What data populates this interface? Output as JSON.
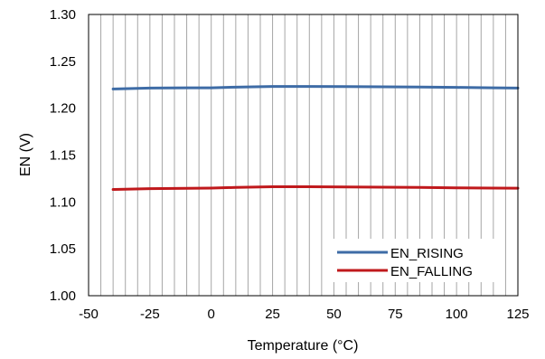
{
  "chart_data": {
    "type": "line",
    "title": "",
    "xlabel": "Temperature (°C)",
    "ylabel": "EN (V)",
    "xlim": [
      -50,
      125
    ],
    "ylim": [
      1.0,
      1.3
    ],
    "x_ticks": [
      -50,
      -25,
      0,
      25,
      50,
      75,
      100,
      125
    ],
    "x_tick_labels": [
      "-50",
      "-25",
      "0",
      "25",
      "50",
      "75",
      "100",
      "125"
    ],
    "y_ticks": [
      1.0,
      1.05,
      1.1,
      1.15,
      1.2,
      1.25,
      1.3
    ],
    "y_tick_labels": [
      "1.00",
      "1.05",
      "1.10",
      "1.15",
      "1.20",
      "1.25",
      "1.30"
    ],
    "x_grid_step": 5,
    "y_grid": false,
    "legend_position": "bottom-right",
    "x": [
      -40,
      -25,
      -10,
      0,
      10,
      25,
      40,
      55,
      70,
      85,
      100,
      115,
      125
    ],
    "series": [
      {
        "name": "EN_RISING",
        "color": "#3E6CA6",
        "values": [
          1.2205,
          1.2215,
          1.2218,
          1.2218,
          1.2225,
          1.2232,
          1.2232,
          1.2231,
          1.2228,
          1.2226,
          1.2222,
          1.2218,
          1.2215
        ]
      },
      {
        "name": "EN_FALLING",
        "color": "#C0191C",
        "values": [
          1.1133,
          1.1142,
          1.1146,
          1.1148,
          1.1155,
          1.1162,
          1.1162,
          1.116,
          1.1157,
          1.1155,
          1.115,
          1.1148,
          1.1147
        ]
      }
    ]
  }
}
